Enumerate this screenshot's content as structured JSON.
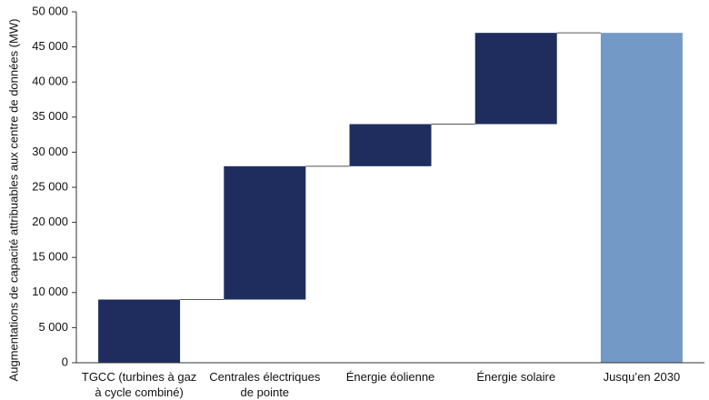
{
  "chart_data": {
    "type": "bar",
    "subtype": "waterfall",
    "ylabel": "Augmentations de capacité attribuables aux centre de données (MW)",
    "xlabel": "",
    "ylim": [
      0,
      50000
    ],
    "yticks": [
      0,
      5000,
      10000,
      15000,
      20000,
      25000,
      30000,
      35000,
      40000,
      45000,
      50000
    ],
    "ytick_labels": [
      "0",
      "5 000",
      "10 000",
      "15 000",
      "20 000",
      "25 000",
      "30 000",
      "35 000",
      "40 000",
      "45 000",
      "50 000"
    ],
    "categories": [
      [
        "TGCC (turbines à gaz",
        "à cycle combiné)"
      ],
      [
        "Centrales électriques",
        "de pointe"
      ],
      [
        "Énergie éolienne"
      ],
      [
        "Énergie solaire"
      ],
      [
        "Jusqu’en 2030"
      ]
    ],
    "bars": [
      {
        "start": 0,
        "end": 9000,
        "kind": "increment"
      },
      {
        "start": 9000,
        "end": 28000,
        "kind": "increment"
      },
      {
        "start": 28000,
        "end": 34000,
        "kind": "increment"
      },
      {
        "start": 34000,
        "end": 47000,
        "kind": "increment"
      },
      {
        "start": 0,
        "end": 47000,
        "kind": "total"
      }
    ],
    "colors": {
      "increment": "#1f2d5e",
      "total": "#7399c6",
      "connector": "#555555",
      "axis": "#333333"
    },
    "grid": false,
    "legend": "none"
  }
}
